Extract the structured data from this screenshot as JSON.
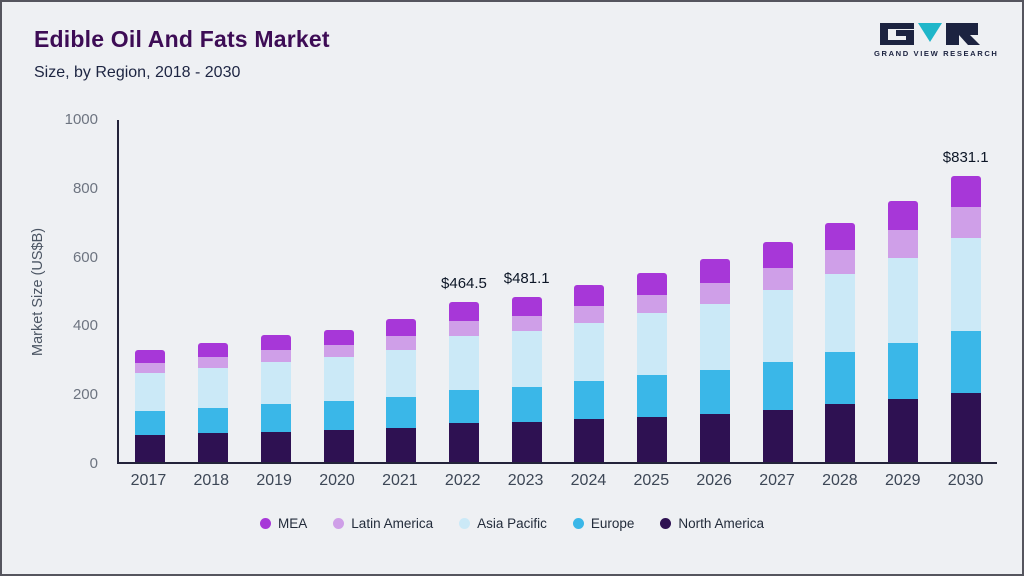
{
  "header": {
    "title": "Edible Oil And Fats Market",
    "subtitle": "Size, by Region, 2018 - 2030"
  },
  "logo": {
    "brand": "GRAND VIEW RESEARCH",
    "dark_color": "#1c2340",
    "teal_color": "#1fb6c9"
  },
  "chart_data": {
    "type": "bar",
    "stacked": true,
    "title": "Edible Oil And Fats Market Size, by Region, 2018 - 2030",
    "ylabel": "Market Size (US$B)",
    "ylim": [
      0,
      1000
    ],
    "yticks": [
      0,
      200,
      400,
      600,
      800,
      1000
    ],
    "grid": false,
    "legend_position": "bottom",
    "categories": [
      "2017",
      "2018",
      "2019",
      "2020",
      "2021",
      "2022",
      "2023",
      "2024",
      "2025",
      "2026",
      "2027",
      "2028",
      "2029",
      "2030"
    ],
    "series": [
      {
        "name": "North America",
        "color": "#2e1152",
        "values": [
          78,
          83,
          88,
          92,
          100,
          112,
          115,
          124,
          132,
          140,
          152,
          168,
          182,
          200
        ]
      },
      {
        "name": "Europe",
        "color": "#3ab7e8",
        "values": [
          70,
          74,
          80,
          85,
          88,
          98,
          103,
          112,
          120,
          128,
          140,
          152,
          165,
          180
        ]
      },
      {
        "name": "Asia Pacific",
        "color": "#cbe9f7",
        "values": [
          110,
          116,
          123,
          128,
          138,
          155,
          162,
          168,
          182,
          192,
          208,
          226,
          245,
          272
        ]
      },
      {
        "name": "Latin America",
        "color": "#cf9fe8",
        "values": [
          30,
          32,
          35,
          36,
          40,
          44.5,
          46,
          50,
          53,
          60,
          65,
          70,
          82,
          90
        ]
      },
      {
        "name": "MEA",
        "color": "#a737d8",
        "values": [
          37,
          40,
          44,
          44,
          49,
          55,
          55.1,
          61,
          63,
          70,
          75,
          79,
          86,
          89.1
        ]
      }
    ],
    "totals_shown": [
      {
        "category": "2022",
        "text": "$464.5"
      },
      {
        "category": "2023",
        "text": "$481.1"
      },
      {
        "category": "2030",
        "text": "$831.1"
      }
    ],
    "legend": [
      "MEA",
      "Latin America",
      "Asia Pacific",
      "Europe",
      "North America"
    ]
  }
}
